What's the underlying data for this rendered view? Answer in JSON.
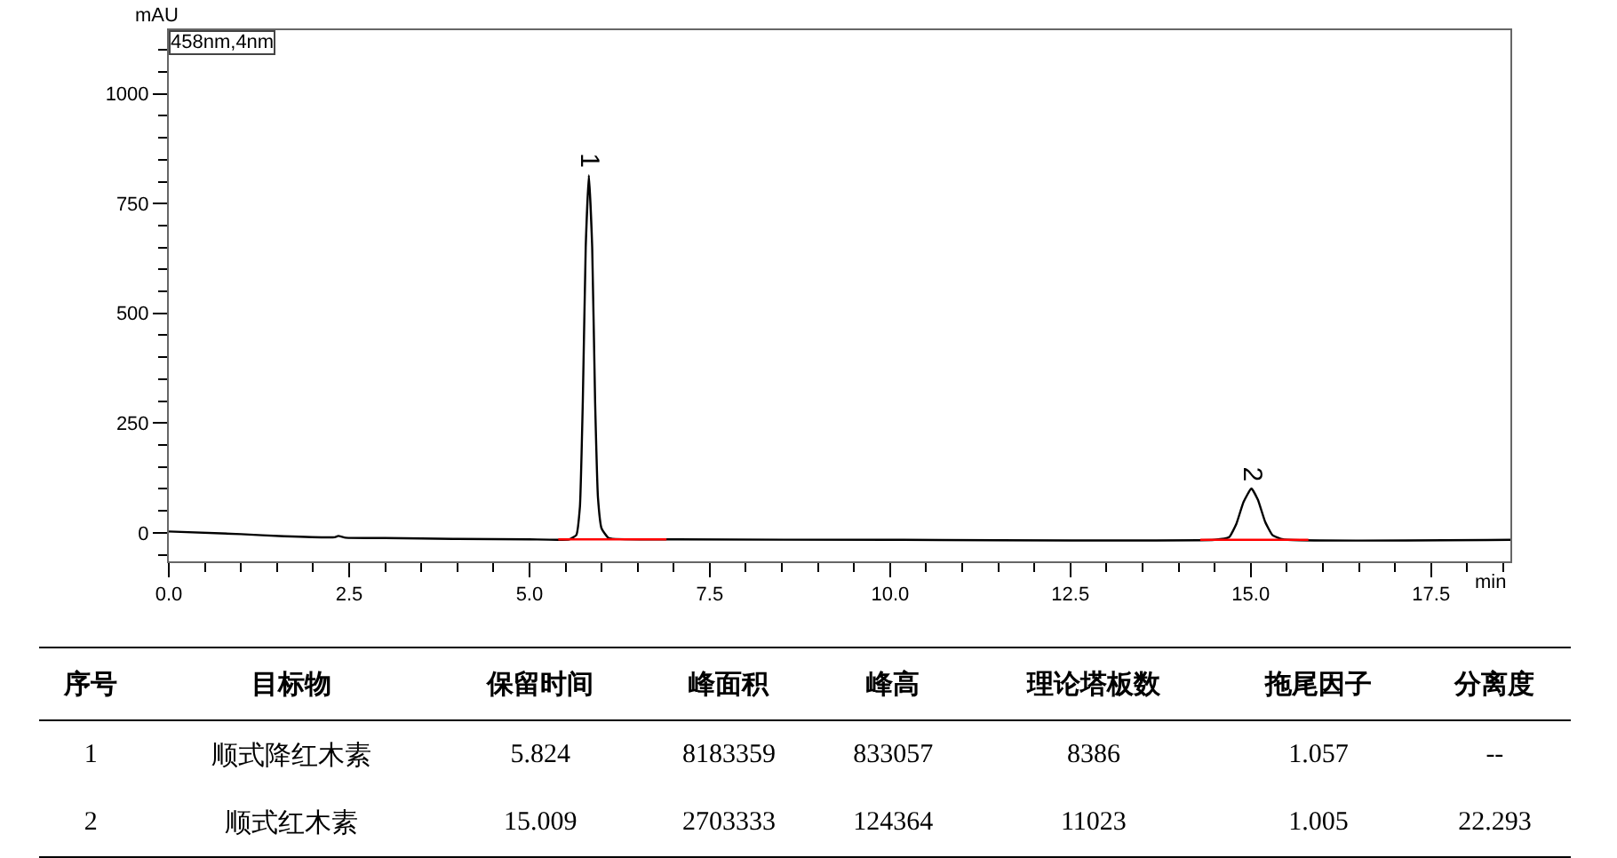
{
  "chart_data": {
    "type": "line",
    "xlabel": "min",
    "ylabel": "mAU",
    "xlim": [
      0,
      18.6
    ],
    "ylim": [
      -65,
      1145
    ],
    "xticks": [
      {
        "value": 0,
        "label": "0.0"
      },
      {
        "value": 2.5,
        "label": "2.5"
      },
      {
        "value": 5,
        "label": "5.0"
      },
      {
        "value": 7.5,
        "label": "7.5"
      },
      {
        "value": 10,
        "label": "10.0"
      },
      {
        "value": 12.5,
        "label": "12.5"
      },
      {
        "value": 15,
        "label": "15.0"
      },
      {
        "value": 17.5,
        "label": "17.5"
      }
    ],
    "yticks": [
      0,
      250,
      500,
      750,
      1000
    ],
    "marker": "none",
    "line_style": "solid",
    "series": [
      {
        "color": "#000000",
        "x": [
          0,
          1,
          1.6,
          2.3,
          2.35,
          2.45,
          3,
          4,
          5,
          5.55,
          5.65,
          5.7,
          5.74,
          5.78,
          5.824,
          5.87,
          5.91,
          5.95,
          6.0,
          6.1,
          7,
          10,
          14.5,
          14.7,
          14.8,
          14.9,
          15.009,
          15.1,
          15.2,
          15.3,
          15.45,
          18.6
        ],
        "values": [
          3,
          -3,
          -8,
          -10,
          -7,
          -11,
          -12,
          -14,
          -15,
          -15,
          -5,
          60,
          300,
          650,
          815,
          650,
          300,
          80,
          10,
          -12,
          -15,
          -16,
          -16,
          -10,
          20,
          70,
          101,
          75,
          25,
          -5,
          -15,
          -16
        ]
      },
      {
        "color": "#ff0000",
        "x": [
          5.4,
          6.9
        ],
        "values": [
          -15,
          -15
        ]
      },
      {
        "color": "#ff0000",
        "x": [
          14.3,
          15.8
        ],
        "values": [
          -16,
          -16
        ]
      }
    ],
    "annotations": [
      {
        "text": "1",
        "x": 5.824,
        "y": 815
      },
      {
        "text": "2",
        "x": 15.009,
        "y": 101
      },
      "458nm,4nm",
      "序号",
      "目标物",
      "保留时间",
      "峰面积",
      "峰高",
      "理论塔板数",
      "拖尾因子",
      "分离度",
      "1",
      "顺式降红木素",
      "5.824",
      "8183359",
      "833057",
      "8386",
      "1.057",
      "--",
      "2",
      "顺式红木素",
      "15.009",
      "2703333",
      "124364",
      "11023",
      "1.005",
      "22.293"
    ]
  }
}
